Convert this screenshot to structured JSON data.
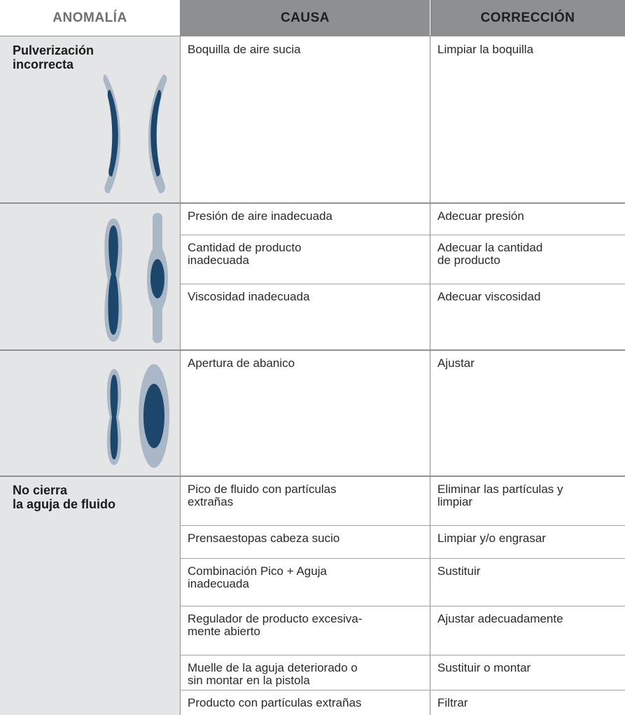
{
  "header": {
    "columns": [
      "ANOMALÍA",
      "CAUSA",
      "CORRECCIÓN"
    ]
  },
  "groups": [
    {
      "anomaly": "Pulverización\nincorrecta",
      "rows": [
        [
          "Boquilla de aire sucia",
          "Limpiar la boquilla"
        ]
      ]
    },
    {
      "rows": [
        [
          "Presión de aire inadecuada",
          "Adecuar presión"
        ],
        [
          "Cantidad de producto\ninadecuada",
          "Adecuar la cantidad\nde producto"
        ],
        [
          "Viscosidad inadecuada",
          "Adecuar viscosidad"
        ]
      ]
    },
    {
      "rows": [
        [
          "Apertura de abanico",
          "Ajustar"
        ]
      ]
    },
    {
      "anomaly": "No cierra\nla aguja de fluido",
      "rows": [
        [
          "Pico de fluido con partículas\nextrañas",
          "Eliminar las partículas y\nlimpiar"
        ],
        [
          "Prensaestopas cabeza sucio",
          "Limpiar y/o engrasar"
        ],
        [
          "Combinación Pico + Aguja\ninadecuada",
          "Sustituir"
        ],
        [
          "Regulador de producto excesiva-\nmente abierto",
          "Ajustar adecuadamente"
        ],
        [
          "Muelle de la aguja deteriorado o\nsin montar en la pistola",
          "Sustituir o montar"
        ],
        [
          "Producto con partículas extrañas",
          "Filtrar"
        ]
      ]
    }
  ]
}
